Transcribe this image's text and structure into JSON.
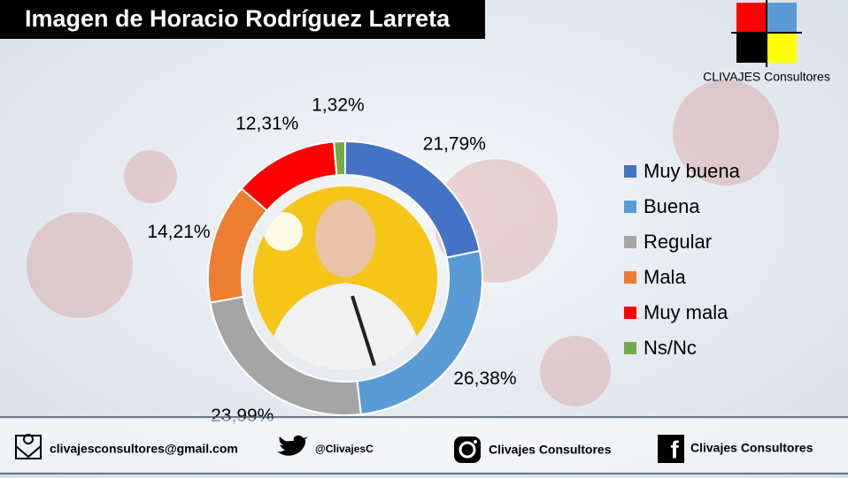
{
  "chart_data": {
    "type": "donut",
    "title": "Imagen de Horacio Rodríguez Larreta",
    "categories": [
      "Muy buena",
      "Buena",
      "Regular",
      "Mala",
      "Muy mala",
      "Ns/Nc"
    ],
    "values": [
      21.79,
      26.38,
      23.99,
      14.21,
      12.31,
      1.32
    ],
    "value_labels": [
      "21,79%",
      "26,38%",
      "23,99%",
      "14,21%",
      "12,31%",
      "1,32%"
    ],
    "colors": [
      "#4472c4",
      "#5b9bd5",
      "#a5a5a5",
      "#ed7d31",
      "#ff0000",
      "#70ad47"
    ],
    "legend": "right"
  },
  "logo": {
    "text": "CLIVAJES Consultores"
  },
  "footer": {
    "email": "clivajesconsultores@gmail.com",
    "twitter": "@ClivajesC",
    "instagram": "Clivajes Consultores",
    "facebook": "Clivajes Consultores"
  }
}
